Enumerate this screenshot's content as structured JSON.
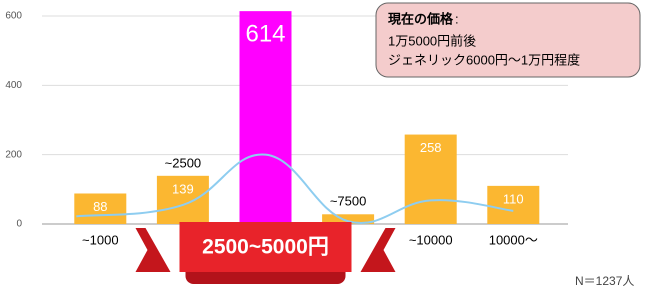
{
  "chart_data": {
    "type": "bar",
    "categories": [
      "~1000",
      "~2500",
      "2500~5000円",
      "~7500",
      "~10000",
      "10000～"
    ],
    "values": [
      88,
      139,
      614,
      28,
      258,
      110
    ],
    "colors": [
      "#fbb731",
      "#fbb731",
      "#ff00ff",
      "#fbb731",
      "#fbb731",
      "#fbb731"
    ],
    "trend": {
      "color": "#8ecdf0",
      "values": [
        22,
        55,
        200,
        8,
        68,
        38
      ]
    },
    "ylim": [
      0,
      600
    ],
    "yticks": [
      0,
      200,
      400,
      600
    ],
    "grid": true,
    "annotation": {
      "heading": "現在の価格",
      "separator": ":",
      "lines": [
        "1万5000円前後",
        "ジェネリック6000円～1万円程度"
      ]
    },
    "note": "N＝1237人"
  }
}
